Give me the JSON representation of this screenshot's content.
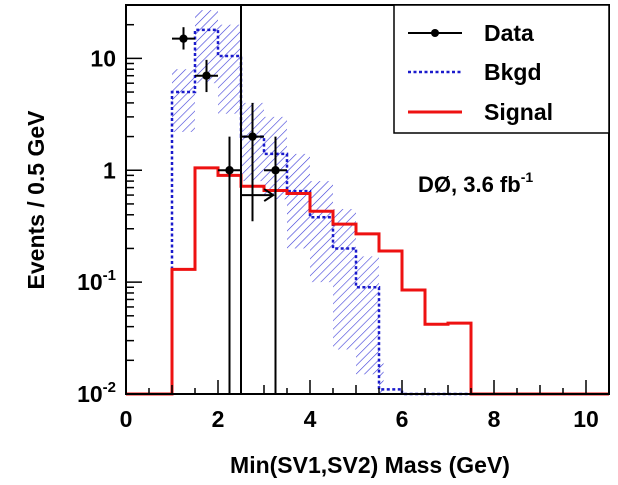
{
  "chart_data": {
    "type": "histogram",
    "xlabel": "Min(SV1,SV2) Mass (GeV)",
    "ylabel": "Events / 0.5 GeV",
    "xlim": [
      0,
      10.5
    ],
    "ylim": [
      0.01,
      30
    ],
    "yscale": "log",
    "bin_width": 0.5,
    "x_ticks": [
      "0",
      "2",
      "4",
      "6",
      "8",
      "10"
    ],
    "y_ticks": [
      {
        "base": "10",
        "exp": "-2",
        "value": 0.01
      },
      {
        "base": "10",
        "exp": "-1",
        "value": 0.1
      },
      {
        "base": "1",
        "exp": "",
        "value": 1
      },
      {
        "base": "10",
        "exp": "",
        "value": 10
      }
    ],
    "legend": {
      "placement": "top-right",
      "entries": [
        {
          "key": "data",
          "label": "Data"
        },
        {
          "key": "bkgd",
          "label": "Bkgd"
        },
        {
          "key": "signal",
          "label": "Signal"
        }
      ]
    },
    "annotation": {
      "text": "DØ, 3.6 fb",
      "sup": "-1"
    },
    "colors": {
      "data": "#000000",
      "bkgd": "#1a1acc",
      "bkgd_band": "#3a3ad8",
      "signal": "#ee1111"
    },
    "bins": [
      0.0,
      0.5,
      1.0,
      1.5,
      2.0,
      2.5,
      3.0,
      3.5,
      4.0,
      4.5,
      5.0,
      5.5,
      6.0,
      6.5,
      7.0,
      7.5,
      8.0,
      8.5,
      9.0,
      9.5,
      10.0
    ],
    "signal": [
      0.01,
      0.01,
      0.13,
      1.05,
      0.9,
      0.72,
      0.66,
      0.62,
      0.43,
      0.33,
      0.27,
      0.19,
      0.085,
      0.042,
      0.043,
      0.01,
      0.01,
      0.01,
      0.01,
      0.01,
      0.01
    ],
    "bkgd": [
      0.01,
      0.01,
      5.0,
      18.0,
      10.5,
      2.0,
      1.4,
      0.65,
      0.38,
      0.2,
      0.09,
      0.011,
      0.01,
      0.01,
      0.01,
      0.01,
      0.01,
      0.01,
      0.01,
      0.01,
      0.01
    ],
    "bkgd_band": [
      {
        "x0": 1.0,
        "x1": 1.5,
        "lo": 2.2,
        "hi": 8.0
      },
      {
        "x0": 1.5,
        "x1": 2.0,
        "lo": 6.0,
        "hi": 27.0
      },
      {
        "x0": 2.0,
        "x1": 2.5,
        "lo": 3.2,
        "hi": 20.0
      },
      {
        "x0": 2.5,
        "x1": 3.0,
        "lo": 0.8,
        "hi": 4.0
      },
      {
        "x0": 3.0,
        "x1": 3.5,
        "lo": 0.55,
        "hi": 3.0
      },
      {
        "x0": 3.5,
        "x1": 4.0,
        "lo": 0.2,
        "hi": 1.4
      },
      {
        "x0": 4.0,
        "x1": 4.5,
        "lo": 0.1,
        "hi": 0.8
      },
      {
        "x0": 4.5,
        "x1": 5.0,
        "lo": 0.025,
        "hi": 0.45
      },
      {
        "x0": 5.0,
        "x1": 5.5,
        "lo": 0.015,
        "hi": 0.17
      },
      {
        "x0": 5.5,
        "x1": 5.6,
        "lo": 0.01,
        "hi": 0.02
      }
    ],
    "data_points": [
      {
        "x": 1.25,
        "y": 15.0,
        "ylo": 12.0,
        "yhi": 19.0
      },
      {
        "x": 1.75,
        "y": 7.0,
        "ylo": 5.0,
        "yhi": 9.7
      },
      {
        "x": 2.25,
        "y": 1.0,
        "ylo": 0.01,
        "yhi": 2.0
      },
      {
        "x": 2.75,
        "y": 2.0,
        "ylo": 0.35,
        "yhi": 4.0
      },
      {
        "x": 3.25,
        "y": 1.0,
        "ylo": 0.01,
        "yhi": 2.0
      }
    ],
    "upper_limit": {
      "x": 2.5,
      "y_lo": 0.01,
      "y_hi": 30.0,
      "arrow_y": 0.6,
      "arrow_to_x": 3.2
    }
  }
}
